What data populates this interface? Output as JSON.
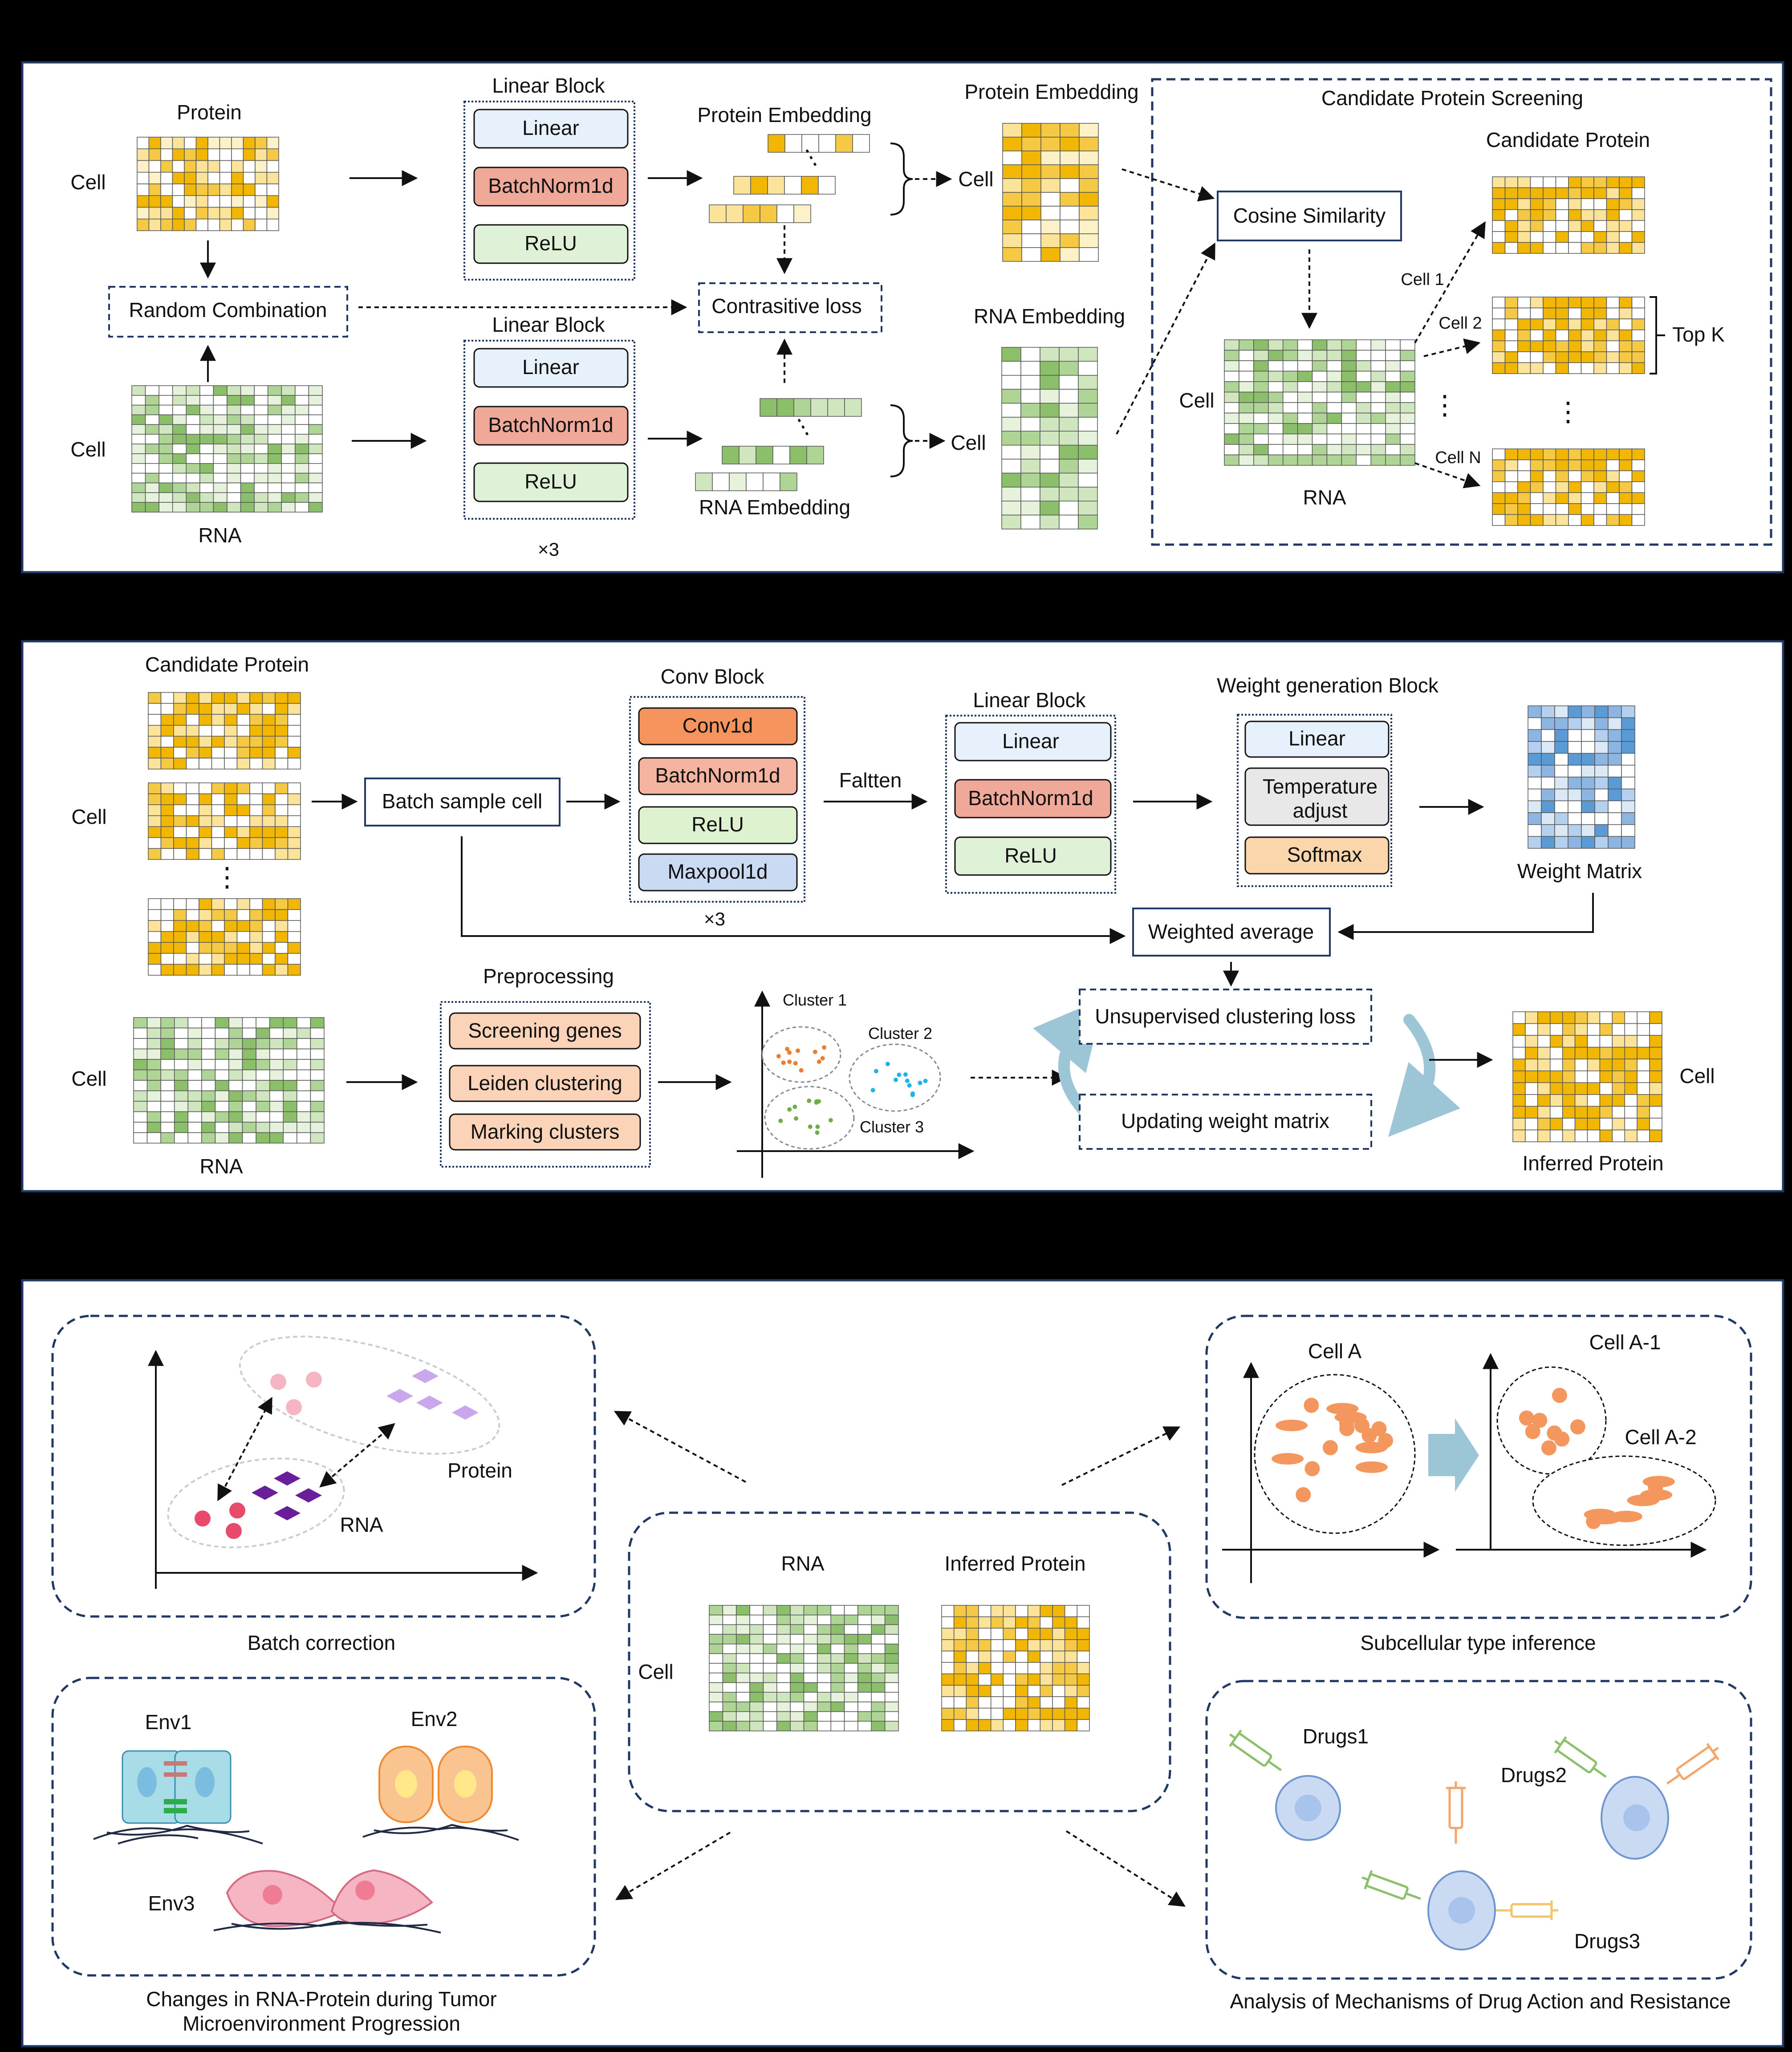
{
  "panelA": {
    "protein": "Protein",
    "cell": "Cell",
    "random_combination": "Random Combination",
    "rna": "RNA",
    "linear_block": "Linear Block",
    "linear": "Linear",
    "batchnorm": "BatchNorm1d",
    "relu": "ReLU",
    "times3": "×3",
    "protein_embedding": "Protein Embedding",
    "rna_embedding": "RNA Embedding",
    "contrastive_loss": "Contrasitive loss",
    "screening_title": "Candidate Protein Screening",
    "candidate_protein": "Candidate Protein",
    "cosine_similarity": "Cosine Similarity",
    "cell1": "Cell 1",
    "cell2": "Cell 2",
    "cellN": "Cell N",
    "topk": "Top K"
  },
  "panelB": {
    "candidate_protein": "Candidate Protein",
    "cell": "Cell",
    "batch_sample_cell": "Batch sample cell",
    "conv_block": "Conv Block",
    "conv1d": "Conv1d",
    "batchnorm": "BatchNorm1d",
    "relu": "ReLU",
    "maxpool": "Maxpool1d",
    "times3": "×3",
    "faltten": "Faltten",
    "linear_block": "Linear Block",
    "linear": "Linear",
    "weight_gen_block": "Weight generation Block",
    "temp_adjust_1": "Temperature",
    "temp_adjust_2": "adjust",
    "softmax": "Softmax",
    "weight_matrix": "Weight Matrix",
    "weighted_average": "Weighted average",
    "preprocessing": "Preprocessing",
    "screening_genes": "Screening genes",
    "leiden": "Leiden clustering",
    "marking": "Marking clusters",
    "cluster1": "Cluster 1",
    "cluster2": "Cluster 2",
    "cluster3": "Cluster 3",
    "unsup_loss": "Unsupervised clustering loss",
    "updating": "Updating weight matrix",
    "rna": "RNA",
    "inferred_protein": "Inferred Protein"
  },
  "panelC": {
    "protein": "Protein",
    "rna": "RNA",
    "batch_correction": "Batch correction",
    "center_rna": "RNA",
    "center_inferred": "Inferred Protein",
    "center_cell": "Cell",
    "cellA": "Cell A",
    "cellA1": "Cell A-1",
    "cellA2": "Cell A-2",
    "subcellular": "Subcellular type inference",
    "env1": "Env1",
    "env2": "Env2",
    "env3": "Env3",
    "tumor_1": "Changes in RNA-Protein during Tumor",
    "tumor_2": "Microenvironment Progression",
    "drugs1": "Drugs1",
    "drugs2": "Drugs2",
    "drugs3": "Drugs3",
    "drug_analysis": "Analysis of Mechanisms of Drug Action and Resistance"
  },
  "colors": {
    "yellow": "#f2b705",
    "green": "#8cbf6a",
    "blue": "#5b9bd5",
    "navy": "#1f3864"
  }
}
